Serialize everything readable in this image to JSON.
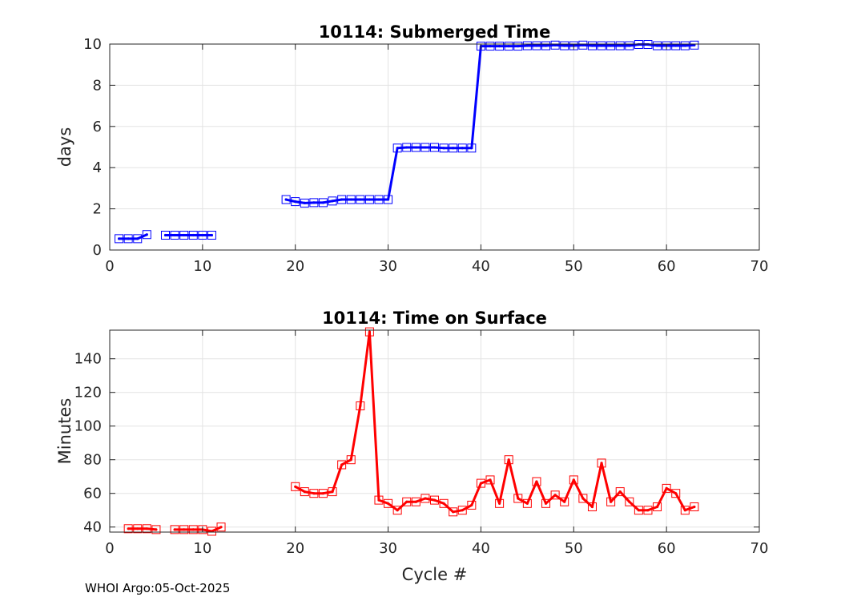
{
  "footer": "WHOI Argo:05-Oct-2025",
  "chart_data": [
    {
      "type": "line",
      "title": "10114: Submerged Time",
      "xlabel": "",
      "ylabel": "days",
      "xlim": [
        0,
        70
      ],
      "ylim": [
        0,
        10
      ],
      "xticks": [
        0,
        10,
        20,
        30,
        40,
        50,
        60,
        70
      ],
      "yticks": [
        0,
        2,
        4,
        6,
        8,
        10
      ],
      "grid": true,
      "color": "#0000ff",
      "marker": "square",
      "segments": [
        {
          "x": [
            1,
            2,
            3,
            4
          ],
          "y": [
            0.55,
            0.55,
            0.55,
            0.75
          ]
        },
        {
          "x": [
            6,
            7,
            8,
            9,
            10,
            11
          ],
          "y": [
            0.72,
            0.72,
            0.72,
            0.72,
            0.72,
            0.72
          ]
        },
        {
          "x": [
            19,
            20,
            21,
            22,
            23,
            24,
            25,
            26,
            27,
            28,
            29,
            30,
            31,
            32,
            33,
            34,
            35,
            36,
            37,
            38,
            39,
            40,
            41,
            42,
            43,
            44,
            45,
            46,
            47,
            48,
            49,
            50,
            51,
            52,
            53,
            54,
            55,
            56,
            57,
            58,
            59,
            60,
            61,
            62,
            63
          ],
          "y": [
            2.45,
            2.35,
            2.28,
            2.3,
            2.3,
            2.38,
            2.45,
            2.45,
            2.45,
            2.45,
            2.45,
            2.45,
            4.95,
            4.98,
            4.98,
            4.98,
            4.98,
            4.95,
            4.95,
            4.95,
            4.95,
            9.9,
            9.9,
            9.9,
            9.9,
            9.9,
            9.92,
            9.92,
            9.92,
            9.95,
            9.92,
            9.92,
            9.95,
            9.92,
            9.92,
            9.92,
            9.92,
            9.92,
            9.98,
            9.98,
            9.92,
            9.92,
            9.92,
            9.92,
            9.95
          ]
        }
      ]
    },
    {
      "type": "line",
      "title": "10114: Time on Surface",
      "xlabel": "Cycle #",
      "ylabel": "Minutes",
      "xlim": [
        0,
        70
      ],
      "ylim": [
        37,
        157
      ],
      "xticks": [
        0,
        10,
        20,
        30,
        40,
        50,
        60,
        70
      ],
      "yticks": [
        40,
        60,
        80,
        100,
        120,
        140
      ],
      "grid": true,
      "color": "#ff0000",
      "marker": "square",
      "segments": [
        {
          "x": [
            2,
            3,
            4,
            5
          ],
          "y": [
            39,
            39,
            39,
            38.5
          ]
        },
        {
          "x": [
            7,
            8,
            9,
            10,
            11,
            12
          ],
          "y": [
            38.5,
            38.5,
            38.5,
            38.5,
            37.5,
            40
          ]
        },
        {
          "x": [
            20,
            21,
            22,
            23,
            24,
            25,
            26,
            27,
            28,
            29,
            30,
            31,
            32,
            33,
            34,
            35,
            36,
            37,
            38,
            39,
            40,
            41,
            42,
            43,
            44,
            45,
            46,
            47,
            48,
            49,
            50,
            51,
            52,
            53,
            54,
            55,
            56,
            57,
            58,
            59,
            60,
            61,
            62,
            63
          ],
          "y": [
            64,
            61,
            60,
            60,
            61,
            77,
            80,
            112,
            156,
            56,
            54,
            50,
            55,
            55,
            57,
            56,
            54,
            49,
            50,
            53,
            66,
            68,
            54,
            80,
            57,
            54,
            67,
            54,
            59,
            55,
            68,
            57,
            52,
            78,
            55,
            61,
            55,
            50,
            50,
            52,
            63,
            60,
            50,
            52
          ]
        }
      ]
    }
  ]
}
